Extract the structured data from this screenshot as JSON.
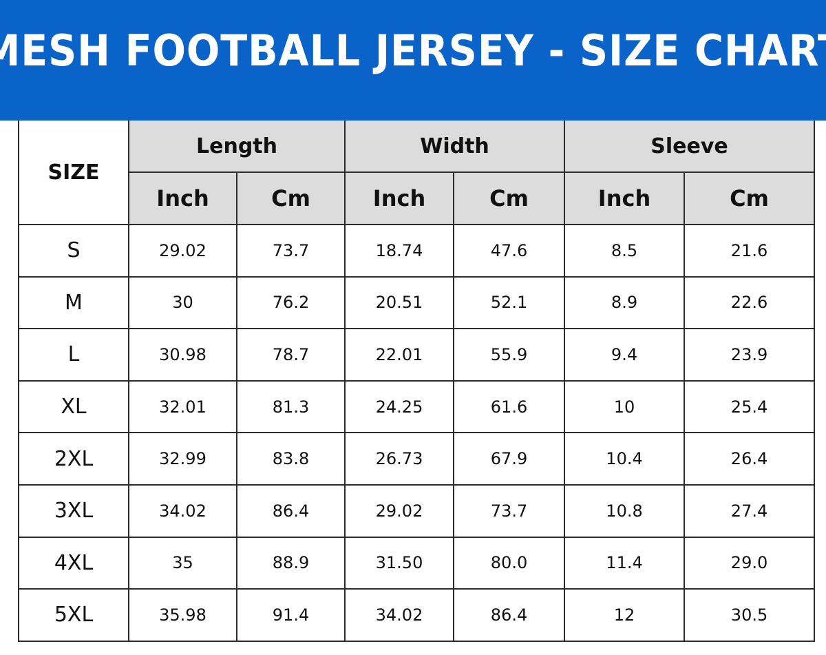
{
  "title": "MESH FOOTBALL JERSEY - SIZE CHART",
  "colors": {
    "banner": "#0a63c9",
    "header_bg": "#dcdcdc"
  },
  "table": {
    "size_header": "SIZE",
    "groups": [
      "Length",
      "Width",
      "Sleeve"
    ],
    "units": [
      "Inch",
      "Cm",
      "Inch",
      "Cm",
      "Inch",
      "Cm"
    ],
    "rows": [
      {
        "size": "S",
        "values": [
          "29.02",
          "73.7",
          "18.74",
          "47.6",
          "8.5",
          "21.6"
        ]
      },
      {
        "size": "M",
        "values": [
          "30",
          "76.2",
          "20.51",
          "52.1",
          "8.9",
          "22.6"
        ]
      },
      {
        "size": "L",
        "values": [
          "30.98",
          "78.7",
          "22.01",
          "55.9",
          "9.4",
          "23.9"
        ]
      },
      {
        "size": "XL",
        "values": [
          "32.01",
          "81.3",
          "24.25",
          "61.6",
          "10",
          "25.4"
        ]
      },
      {
        "size": "2XL",
        "values": [
          "32.99",
          "83.8",
          "26.73",
          "67.9",
          "10.4",
          "26.4"
        ]
      },
      {
        "size": "3XL",
        "values": [
          "34.02",
          "86.4",
          "29.02",
          "73.7",
          "10.8",
          "27.4"
        ]
      },
      {
        "size": "4XL",
        "values": [
          "35",
          "88.9",
          "31.50",
          "80.0",
          "11.4",
          "29.0"
        ]
      },
      {
        "size": "5XL",
        "values": [
          "35.98",
          "91.4",
          "34.02",
          "86.4",
          "12",
          "30.5"
        ]
      }
    ]
  }
}
